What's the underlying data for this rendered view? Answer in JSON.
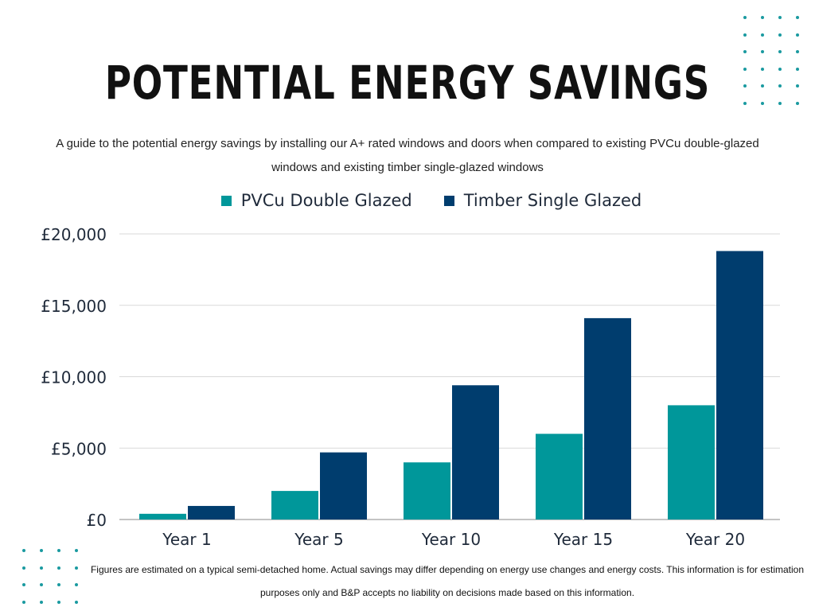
{
  "title": "POTENTIAL ENERGY SAVINGS",
  "subtitle": "A guide to the potential energy savings by installing our A+ rated windows and doors when compared to existing PVCu double-glazed windows and existing timber single-glazed windows",
  "footnote": "Figures are estimated on a typical semi-detached home. Actual savings may differ depending on energy use changes and energy costs. This information is for estimation purposes only and B&P accepts no liability on decisions made based on this information.",
  "colors": {
    "pvcu": "#00979a",
    "timber": "#003d6e",
    "grid": "#d9d9d9",
    "dots": "#1a9aa0"
  },
  "chart_data": {
    "type": "bar",
    "title": "POTENTIAL ENERGY SAVINGS",
    "categories": [
      "Year 1",
      "Year 5",
      "Year 10",
      "Year 15",
      "Year 20"
    ],
    "series": [
      {
        "name": "PVCu Double Glazed",
        "values": [
          400,
          2000,
          4000,
          6000,
          8000
        ]
      },
      {
        "name": "Timber Single Glazed",
        "values": [
          950,
          4700,
          9400,
          14100,
          18800
        ]
      }
    ],
    "ylim": [
      0,
      20000
    ],
    "yticks": [
      0,
      5000,
      10000,
      15000,
      20000
    ],
    "ytick_labels": [
      "£0",
      "£5,000",
      "£10,000",
      "£15,000",
      "£20,000"
    ],
    "xlabel": "",
    "ylabel": "",
    "grid": true,
    "legend": "top-center"
  }
}
